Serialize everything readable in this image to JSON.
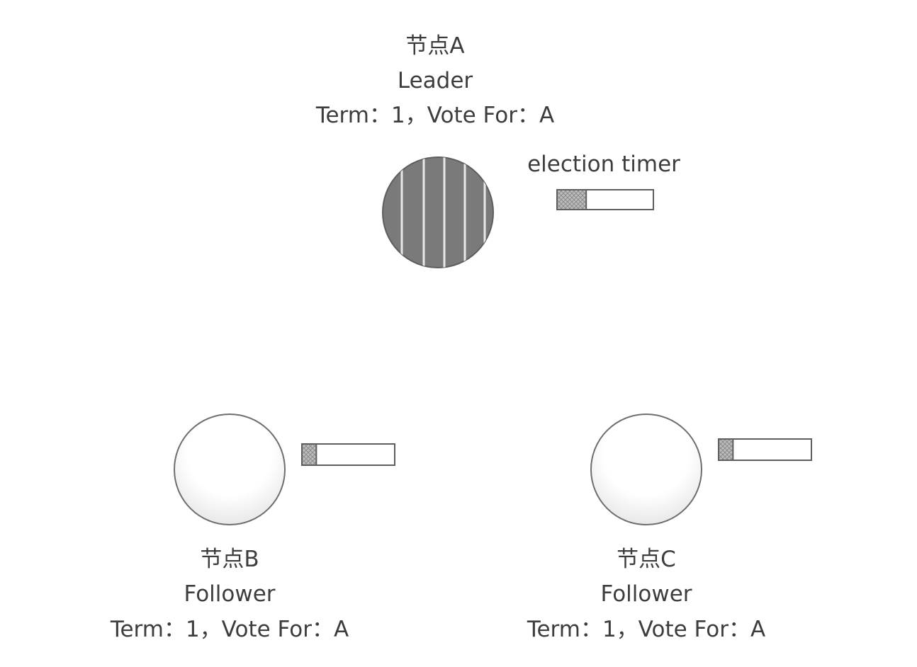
{
  "nodes": [
    {
      "id": "a",
      "name": "节点A",
      "role": "Leader",
      "status": "Term：1，Vote For：A",
      "is_leader": true,
      "timer_fill": 0.3
    },
    {
      "id": "b",
      "name": "节点B",
      "role": "Follower",
      "status": "Term：1，Vote For：A",
      "is_leader": false,
      "timer_fill": 0.15
    },
    {
      "id": "c",
      "name": "节点C",
      "role": "Follower",
      "status": "Term：1，Vote For：A",
      "is_leader": false,
      "timer_fill": 0.15
    }
  ],
  "timer_label": "election timer",
  "colors": {
    "leader_fill": "#7a7a7a",
    "leader_stripe": "#e8e8e8",
    "follower_fill": "#ffffff",
    "follower_shade": "#e6e6e6",
    "outline": "#6e6e6e",
    "timer_hatch": "#9a9a9a",
    "text": "#3d3d3d"
  }
}
